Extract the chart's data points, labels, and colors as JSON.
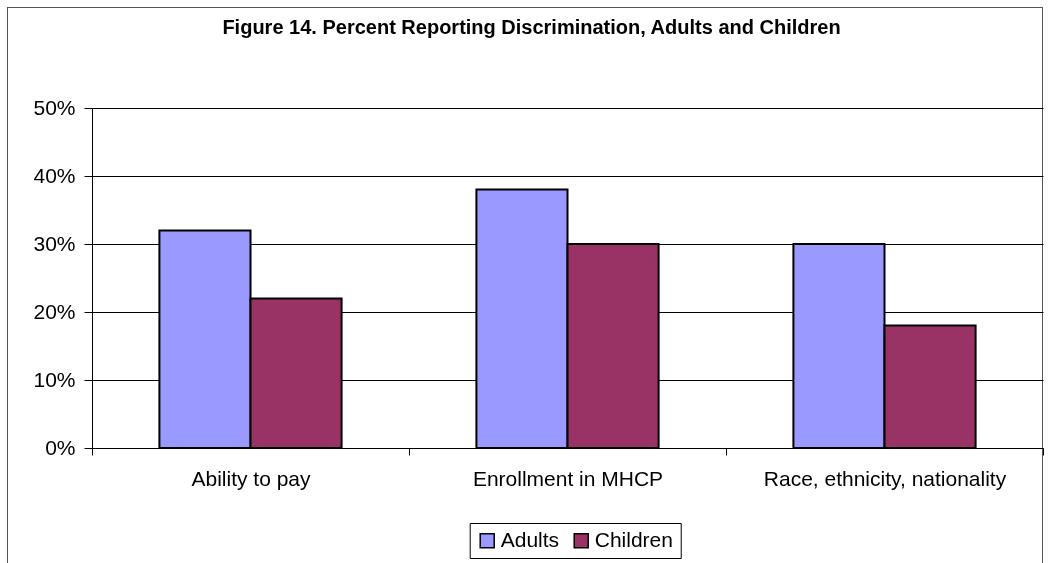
{
  "chart_data": {
    "type": "bar",
    "title": "Figure 14. Percent Reporting Discrimination, Adults and Children",
    "categories": [
      "Ability to pay",
      "Enrollment in MHCP",
      "Race, ethnicity, nationality"
    ],
    "series": [
      {
        "name": "Adults",
        "color": "#9999ff",
        "values": [
          32,
          38,
          30
        ]
      },
      {
        "name": "Children",
        "color": "#993366",
        "values": [
          22,
          30,
          18
        ]
      }
    ],
    "ylim": [
      0,
      50
    ],
    "yticks": [
      {
        "value": 0,
        "label": "0%"
      },
      {
        "value": 10,
        "label": "10%"
      },
      {
        "value": 20,
        "label": "20%"
      },
      {
        "value": 30,
        "label": "30%"
      },
      {
        "value": 40,
        "label": "40%"
      },
      {
        "value": 50,
        "label": "50%"
      }
    ],
    "grid": "y",
    "legend": "bottom"
  }
}
